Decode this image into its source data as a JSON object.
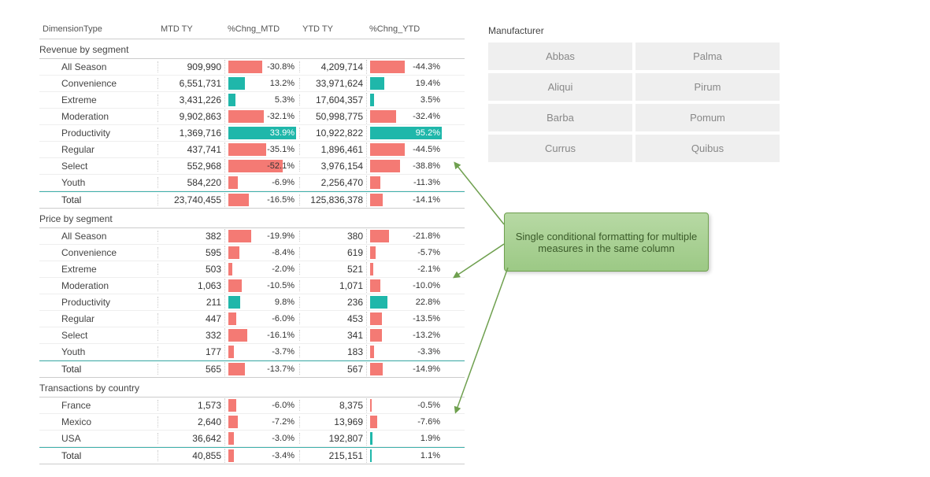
{
  "colors": {
    "neg": "#f47a74",
    "pos": "#1fb7aa",
    "special": "#1fb7aa",
    "special_text": "#ffffff"
  },
  "callout_text": "Single conditional formatting for multiple measures in the same column",
  "slicer": {
    "title": "Manufacturer",
    "items": [
      "Abbas",
      "Palma",
      "Aliqui",
      "Pirum",
      "Barba",
      "Pomum",
      "Currus",
      "Quibus"
    ]
  },
  "headers": [
    "DimensionType",
    "MTD TY",
    "%Chng_MTD",
    "YTD TY",
    "%Chng_YTD"
  ],
  "groups": [
    {
      "title": "Revenue by segment",
      "rows": [
        {
          "dim": "All Season",
          "mtd": "909,990",
          "pm": -30.8,
          "pm_bar": 50,
          "ytd": "4,209,714",
          "py": -44.3,
          "py_bar": 48
        },
        {
          "dim": "Convenience",
          "mtd": "6,551,731",
          "pm": 13.2,
          "pm_bar": 24,
          "ytd": "33,971,624",
          "py": 19.4,
          "py_bar": 20
        },
        {
          "dim": "Extreme",
          "mtd": "3,431,226",
          "pm": 5.3,
          "pm_bar": 10,
          "ytd": "17,604,357",
          "py": 3.5,
          "py_bar": 5
        },
        {
          "dim": "Moderation",
          "mtd": "9,902,863",
          "pm": -32.1,
          "pm_bar": 52,
          "ytd": "50,998,775",
          "py": -32.4,
          "py_bar": 36
        },
        {
          "dim": "Productivity",
          "mtd": "1,369,716",
          "pm": 33.9,
          "pm_bar": 60,
          "pm_full": true,
          "ytd": "10,922,822",
          "py": 95.2,
          "py_bar": 100,
          "py_full": true
        },
        {
          "dim": "Regular",
          "mtd": "437,741",
          "pm": -35.1,
          "pm_bar": 56,
          "ytd": "1,896,461",
          "py": -44.5,
          "py_bar": 48
        },
        {
          "dim": "Select",
          "mtd": "552,968",
          "pm": -52.1,
          "pm_bar": 80,
          "ytd": "3,976,154",
          "py": -38.8,
          "py_bar": 42
        },
        {
          "dim": "Youth",
          "mtd": "584,220",
          "pm": -6.9,
          "pm_bar": 14,
          "ytd": "2,256,470",
          "py": -11.3,
          "py_bar": 14
        },
        {
          "dim": "Total",
          "mtd": "23,740,455",
          "pm": -16.5,
          "pm_bar": 30,
          "ytd": "125,836,378",
          "py": -14.1,
          "py_bar": 18,
          "total": true
        }
      ]
    },
    {
      "title": "Price by segment",
      "rows": [
        {
          "dim": "All Season",
          "mtd": "382",
          "pm": -19.9,
          "pm_bar": 34,
          "ytd": "380",
          "py": -21.8,
          "py_bar": 26
        },
        {
          "dim": "Convenience",
          "mtd": "595",
          "pm": -8.4,
          "pm_bar": 16,
          "ytd": "619",
          "py": -5.7,
          "py_bar": 8
        },
        {
          "dim": "Extreme",
          "mtd": "503",
          "pm": -2.0,
          "pm_bar": 6,
          "ytd": "521",
          "py": -2.1,
          "py_bar": 4
        },
        {
          "dim": "Moderation",
          "mtd": "1,063",
          "pm": -10.5,
          "pm_bar": 20,
          "ytd": "1,071",
          "py": -10.0,
          "py_bar": 14
        },
        {
          "dim": "Productivity",
          "mtd": "211",
          "pm": 9.8,
          "pm_bar": 18,
          "ytd": "236",
          "py": 22.8,
          "py_bar": 24
        },
        {
          "dim": "Regular",
          "mtd": "447",
          "pm": -6.0,
          "pm_bar": 12,
          "ytd": "453",
          "py": -13.5,
          "py_bar": 16
        },
        {
          "dim": "Select",
          "mtd": "332",
          "pm": -16.1,
          "pm_bar": 28,
          "ytd": "341",
          "py": -13.2,
          "py_bar": 16
        },
        {
          "dim": "Youth",
          "mtd": "177",
          "pm": -3.7,
          "pm_bar": 8,
          "ytd": "183",
          "py": -3.3,
          "py_bar": 5
        },
        {
          "dim": "Total",
          "mtd": "565",
          "pm": -13.7,
          "pm_bar": 24,
          "ytd": "567",
          "py": -14.9,
          "py_bar": 18,
          "total": true
        }
      ]
    },
    {
      "title": "Transactions by country",
      "rows": [
        {
          "dim": "France",
          "mtd": "1,573",
          "pm": -6.0,
          "pm_bar": 12,
          "ytd": "8,375",
          "py": -0.5,
          "py_bar": 2
        },
        {
          "dim": "Mexico",
          "mtd": "2,640",
          "pm": -7.2,
          "pm_bar": 14,
          "ytd": "13,969",
          "py": -7.6,
          "py_bar": 10
        },
        {
          "dim": "USA",
          "mtd": "36,642",
          "pm": -3.0,
          "pm_bar": 8,
          "ytd": "192,807",
          "py": 1.9,
          "py_bar": 3
        },
        {
          "dim": "Total",
          "mtd": "40,855",
          "pm": -3.4,
          "pm_bar": 8,
          "ytd": "215,151",
          "py": 1.1,
          "py_bar": 2,
          "total": true
        }
      ]
    }
  ]
}
